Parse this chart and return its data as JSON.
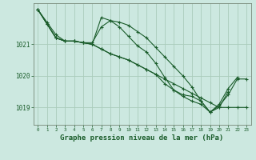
{
  "background_color": "#cce8e0",
  "grid_color": "#aaccbb",
  "line_color": "#1a5c2a",
  "xlabel": "Graphe pression niveau de la mer (hPa)",
  "xlabel_fontsize": 6.5,
  "xtick_fontsize": 4.2,
  "ytick_fontsize": 5.5,
  "xticks": [
    0,
    1,
    2,
    3,
    4,
    5,
    6,
    7,
    8,
    9,
    10,
    11,
    12,
    13,
    14,
    15,
    16,
    17,
    18,
    19,
    20,
    21,
    22,
    23
  ],
  "yticks": [
    1019,
    1020,
    1021
  ],
  "ylim": [
    1018.45,
    1022.3
  ],
  "xlim": [
    -0.5,
    23.5
  ],
  "series": [
    [
      1022.1,
      1021.7,
      1021.3,
      1021.1,
      1021.1,
      1021.05,
      1021.05,
      1021.55,
      1021.75,
      1021.7,
      1021.6,
      1021.4,
      1021.2,
      1020.9,
      1020.6,
      1020.3,
      1020.0,
      1019.65,
      1019.2,
      1018.85,
      1019.05,
      1019.4,
      1019.9,
      1019.9
    ],
    [
      1022.1,
      1021.65,
      1021.2,
      1021.1,
      1021.1,
      1021.05,
      1021.0,
      1020.85,
      1020.7,
      1020.6,
      1020.5,
      1020.35,
      1020.2,
      1020.05,
      1019.9,
      1019.75,
      1019.6,
      1019.45,
      1019.3,
      1019.15,
      1019.0,
      1019.0,
      1019.0,
      1019.0
    ],
    [
      1022.1,
      1021.65,
      1021.2,
      1021.1,
      1021.1,
      1021.05,
      1021.0,
      1021.85,
      1021.75,
      1021.55,
      1021.25,
      1020.95,
      1020.75,
      1020.4,
      1019.95,
      1019.55,
      1019.35,
      1019.2,
      1019.1,
      1018.85,
      1019.1,
      1019.6,
      1019.95,
      null
    ],
    [
      1022.1,
      1021.65,
      1021.2,
      1021.1,
      1021.1,
      1021.05,
      1021.0,
      1020.85,
      1020.7,
      1020.6,
      1020.5,
      1020.35,
      1020.2,
      1020.05,
      1019.75,
      1019.55,
      1019.4,
      1019.35,
      1019.2,
      1018.85,
      1019.0,
      1019.5,
      null,
      null
    ]
  ]
}
